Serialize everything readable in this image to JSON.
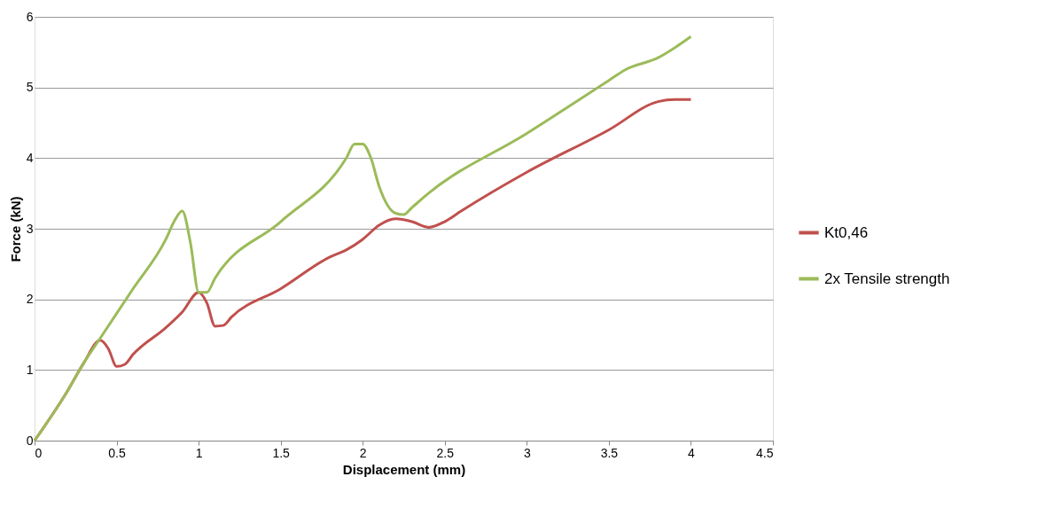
{
  "chart_data": {
    "type": "line",
    "xlabel": "Displacement (mm)",
    "ylabel": "Force (kN)",
    "xlim": [
      0,
      4.5
    ],
    "xticks": [
      0,
      0.5,
      1,
      1.5,
      2,
      2.5,
      3,
      3.5,
      4,
      4.5
    ],
    "ylim": [
      0,
      6
    ],
    "yticks": [
      0,
      1,
      2,
      3,
      4,
      5,
      6
    ],
    "grid": "y",
    "legend": "right",
    "marker": "none",
    "line_style": "solid",
    "series": [
      {
        "name": "Kt0,46",
        "color": "#c0504d",
        "x": [
          0,
          0.2,
          0.3,
          0.4,
          0.45,
          0.5,
          0.55,
          0.6,
          0.8,
          0.9,
          1.0,
          1.05,
          1.1,
          1.15,
          1.2,
          1.5,
          1.8,
          1.9,
          2.0,
          2.1,
          2.2,
          2.3,
          2.4,
          2.5,
          2.6,
          3.0,
          3.5,
          3.8,
          3.9,
          4.0
        ],
        "values": [
          0,
          0.7,
          1.1,
          1.42,
          1.3,
          1.05,
          1.08,
          1.22,
          1.6,
          1.82,
          2.1,
          1.95,
          1.62,
          1.63,
          1.75,
          2.15,
          2.6,
          2.7,
          2.85,
          3.05,
          3.14,
          3.1,
          3.02,
          3.1,
          3.25,
          3.8,
          4.4,
          4.8,
          4.83,
          4.83
        ]
      },
      {
        "name": "2x Tensile strength",
        "color": "#9bbb59",
        "x": [
          0,
          0.2,
          0.3,
          0.4,
          0.6,
          0.8,
          0.85,
          0.9,
          0.95,
          1.0,
          1.05,
          1.1,
          1.5,
          1.9,
          1.95,
          2.0,
          2.05,
          2.1,
          2.2,
          2.25,
          2.3,
          2.4,
          3.0,
          3.5,
          3.6,
          3.8,
          4.0
        ],
        "values": [
          0,
          0.7,
          1.1,
          1.45,
          2.15,
          2.85,
          3.1,
          3.25,
          2.8,
          2.1,
          2.1,
          2.3,
          3.1,
          4.0,
          4.2,
          4.2,
          4.0,
          3.6,
          3.22,
          3.2,
          3.3,
          3.5,
          4.35,
          5.1,
          5.25,
          5.42,
          5.72
        ]
      }
    ]
  }
}
